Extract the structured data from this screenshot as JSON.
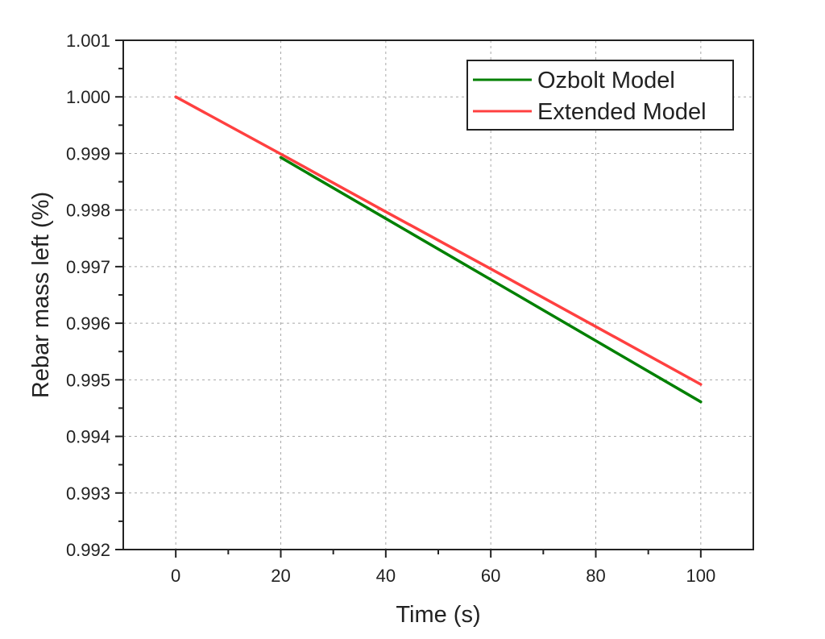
{
  "chart_data": {
    "type": "line",
    "title": "",
    "xlabel": "Time (s)",
    "ylabel": "Rebar mass left (%)",
    "xlim": [
      -10,
      110
    ],
    "ylim": [
      0.992,
      1.001
    ],
    "x_ticks": [
      0,
      20,
      40,
      60,
      80,
      100
    ],
    "x_tick_labels": [
      "0",
      "20",
      "40",
      "60",
      "80",
      "100"
    ],
    "y_ticks": [
      0.992,
      0.993,
      0.994,
      0.995,
      0.996,
      0.997,
      0.998,
      0.999,
      1.0,
      1.001
    ],
    "y_tick_labels": [
      "0.992",
      "0.993",
      "0.994",
      "0.995",
      "0.996",
      "0.997",
      "0.998",
      "0.999",
      "1.000",
      "1.001"
    ],
    "grid": true,
    "legend_position": "top-right",
    "series": [
      {
        "name": "Ozbolt Model",
        "color": "#008000",
        "x": [
          20,
          40,
          60,
          80,
          100
        ],
        "y": [
          0.99893,
          0.99785,
          0.99677,
          0.99569,
          0.99461
        ]
      },
      {
        "name": "Extended Model",
        "color": "#ff4040",
        "x": [
          0,
          20,
          40,
          60,
          80,
          100
        ],
        "y": [
          1.0,
          0.99899,
          0.99797,
          0.99696,
          0.99594,
          0.99492
        ]
      }
    ]
  }
}
